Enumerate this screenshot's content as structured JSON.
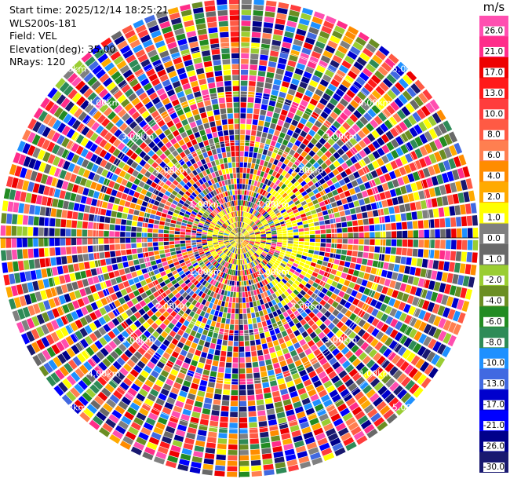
{
  "info": {
    "start_time": "Start time: 2025/12/14 18:25:21",
    "site": "WLS200s-181",
    "field": "Field: VEL",
    "elevation": "Elevation(deg): 35.00",
    "nrays": "NRays: 120"
  },
  "colorbar": {
    "unit": "m/s",
    "ticks": [
      "26.0",
      "21.0",
      "17.0",
      "13.0",
      "10.0",
      "8.0",
      "6.0",
      "4.0",
      "2.0",
      "1.0",
      "0.0",
      "-1.0",
      "-2.0",
      "-4.0",
      "-6.0",
      "-8.0",
      "-10.0",
      "-13.0",
      "-17.0",
      "-21.0",
      "-26.0",
      "-30.0"
    ],
    "colors": [
      "#ff4fb0",
      "#ff2d8a",
      "#ee0000",
      "#ff1a1a",
      "#ff3d3d",
      "#ff5a44",
      "#ff7f50",
      "#ff8c00",
      "#ffaa00",
      "#ffff00",
      "#808080",
      "#696969",
      "#9acd32",
      "#6b8e23",
      "#228b22",
      "#2e8b57",
      "#1e90ff",
      "#4169e1",
      "#0000cd",
      "#0000ff",
      "#00008b",
      "#191970"
    ]
  },
  "chart_data": {
    "type": "heatmap",
    "projection": "polar-ppi",
    "n_rays": 120,
    "range_labels": [
      "1.00km",
      "2.00km",
      "3.00km",
      "4.00km",
      "5.00km"
    ],
    "value_range": [
      -30,
      30
    ]
  }
}
